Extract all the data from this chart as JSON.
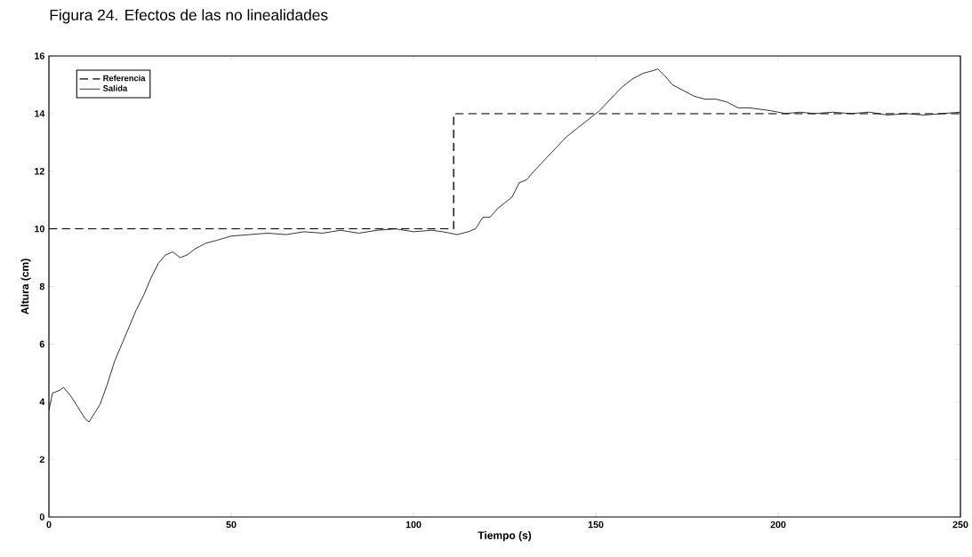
{
  "chart_data": {
    "type": "line",
    "title": "Figura 24. Efectos de las no linealidades",
    "xlabel": "Tiempo (s)",
    "ylabel": "Altura (cm)",
    "xlim": [
      0,
      250
    ],
    "ylim": [
      0,
      16
    ],
    "xticks": [
      0,
      50,
      100,
      150,
      200,
      250
    ],
    "yticks": [
      0,
      2,
      4,
      6,
      8,
      10,
      12,
      14,
      16
    ],
    "legend": "top left",
    "series": [
      {
        "name": "Referencia",
        "color": "#000000",
        "line_style": "dashed",
        "x": [
          0,
          111,
          111,
          250
        ],
        "values": [
          10,
          10,
          14,
          14
        ]
      },
      {
        "name": "Salida",
        "color": "#000000",
        "line_style": "solid",
        "x": [
          0,
          1,
          3,
          4,
          6,
          8,
          10,
          11,
          12,
          14,
          16,
          18,
          20,
          22,
          24,
          26,
          28,
          30,
          32,
          34,
          36,
          38,
          40,
          43,
          46,
          50,
          55,
          60,
          65,
          70,
          75,
          80,
          85,
          90,
          95,
          100,
          105,
          108,
          110,
          112,
          115,
          117,
          119,
          121,
          123,
          125,
          127,
          129,
          131,
          133,
          136,
          139,
          142,
          145,
          148,
          151,
          154,
          157,
          160,
          163,
          166,
          167,
          169,
          171,
          174,
          177,
          180,
          183,
          186,
          189,
          192,
          195,
          198,
          202,
          206,
          210,
          215,
          220,
          225,
          230,
          235,
          240,
          245,
          250
        ],
        "values": [
          3.7,
          4.3,
          4.4,
          4.5,
          4.2,
          3.8,
          3.4,
          3.3,
          3.5,
          3.9,
          4.6,
          5.4,
          6.0,
          6.6,
          7.2,
          7.7,
          8.3,
          8.8,
          9.1,
          9.2,
          9.0,
          9.1,
          9.3,
          9.5,
          9.6,
          9.75,
          9.8,
          9.85,
          9.8,
          9.9,
          9.85,
          9.95,
          9.85,
          9.95,
          10.0,
          9.9,
          9.95,
          9.9,
          9.85,
          9.8,
          9.9,
          10.0,
          10.4,
          10.4,
          10.7,
          10.9,
          11.1,
          11.6,
          11.7,
          12.0,
          12.4,
          12.8,
          13.2,
          13.5,
          13.8,
          14.1,
          14.5,
          14.9,
          15.2,
          15.4,
          15.5,
          15.55,
          15.3,
          15.0,
          14.8,
          14.6,
          14.5,
          14.5,
          14.4,
          14.2,
          14.2,
          14.15,
          14.1,
          14.0,
          14.05,
          14.0,
          14.05,
          14.0,
          14.05,
          13.95,
          14.0,
          13.95,
          14.0,
          14.05
        ]
      }
    ]
  }
}
